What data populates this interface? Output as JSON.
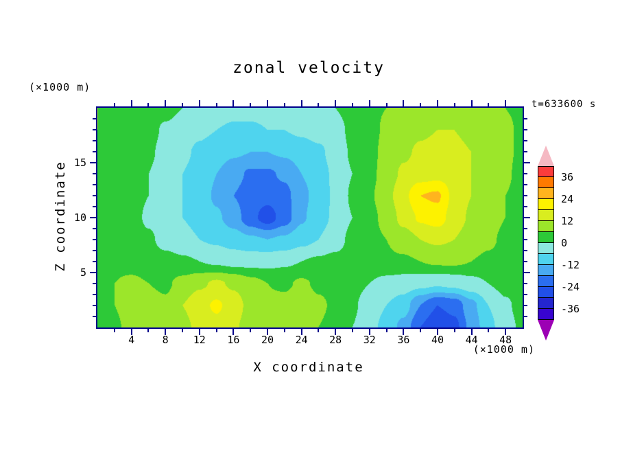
{
  "title": "zonal velocity",
  "annotations": {
    "time_label": "t=633600 s",
    "y_unit_label": "(×1000 m)",
    "x_unit_label": "(×1000 m)"
  },
  "frame_color": "#00008b",
  "axes": {
    "x": {
      "label": "X coordinate",
      "min": 0,
      "max": 50,
      "major_ticks": [
        4,
        8,
        12,
        16,
        20,
        24,
        28,
        32,
        36,
        40,
        44,
        48
      ],
      "minor_step": 2
    },
    "z": {
      "label": "Z coordinate",
      "min": 0,
      "max": 20,
      "major_ticks": [
        5,
        10,
        15
      ],
      "minor_step": 1
    }
  },
  "colorbar": {
    "vmin": -42,
    "vmax": 42,
    "interval": 6,
    "labels": [
      36,
      24,
      12,
      0,
      -12,
      -24,
      -36
    ],
    "band_colors": [
      "#3804d0",
      "#2426cf",
      "#2150e8",
      "#2b6ef0",
      "#49aaf2",
      "#4fd4ee",
      "#8ce8e0",
      "#2dc938",
      "#9ce62a",
      "#d9ed1f",
      "#fdf200",
      "#ffb41e",
      "#ff7a00",
      "#fb3c3c"
    ],
    "over_color": "#f5b9c3",
    "under_color": "#9c00b4"
  },
  "chart_data": {
    "type": "heatmap",
    "title": "zonal velocity",
    "xlabel": "X coordinate (×1000 m)",
    "ylabel": "Z coordinate (×1000 m)",
    "time_annotation": "t=633600 s",
    "contour_interval": 6,
    "levels_range": [
      -42,
      42
    ],
    "x": [
      0,
      2,
      4,
      6,
      8,
      10,
      12,
      14,
      16,
      18,
      20,
      22,
      24,
      26,
      28,
      30,
      32,
      34,
      36,
      38,
      40,
      42,
      44,
      46,
      48,
      50
    ],
    "z": [
      20,
      18,
      16,
      14,
      12,
      10,
      8,
      6,
      4,
      2,
      0
    ],
    "values": [
      [
        6,
        5,
        4,
        3,
        2,
        0,
        -2,
        -3,
        -4,
        -4,
        -4,
        -3,
        -2,
        -1,
        0,
        3,
        5,
        6,
        7,
        8,
        9,
        9,
        8,
        7,
        6,
        5
      ],
      [
        6,
        4,
        3,
        2,
        -1,
        -3,
        -5,
        -6,
        -7,
        -7,
        -6,
        -6,
        -5,
        -4,
        -3,
        2,
        4,
        7,
        9,
        11,
        12,
        12,
        11,
        9,
        7,
        5
      ],
      [
        5,
        4,
        3,
        1,
        -2,
        -5,
        -7,
        -9,
        -11,
        -12,
        -12,
        -11,
        -9,
        -7,
        -4,
        1,
        4,
        8,
        11,
        13,
        14,
        13,
        12,
        10,
        7,
        5
      ],
      [
        5,
        4,
        3,
        0,
        -3,
        -6,
        -8,
        -12,
        -16,
        -19,
        -19,
        -17,
        -12,
        -8,
        -5,
        0,
        4,
        9,
        13,
        15,
        16,
        15,
        12,
        9,
        7,
        4
      ],
      [
        5,
        4,
        2,
        0,
        -3,
        -6,
        -9,
        -13,
        -18,
        -21,
        -22,
        -20,
        -14,
        -9,
        -5,
        1,
        5,
        10,
        16,
        24,
        25,
        16,
        12,
        9,
        6,
        4
      ],
      [
        5,
        4,
        2,
        -1,
        -4,
        -6,
        -8,
        -11,
        -15,
        -22,
        -27,
        -21,
        -13,
        -8,
        -5,
        0,
        4,
        8,
        14,
        19,
        21,
        15,
        11,
        8,
        6,
        4
      ],
      [
        5,
        4,
        3,
        1,
        -2,
        -4,
        -6,
        -7,
        -9,
        -11,
        -12,
        -11,
        -8,
        -6,
        -3,
        2,
        4,
        6,
        9,
        12,
        13,
        12,
        9,
        7,
        5,
        4
      ],
      [
        5,
        5,
        4,
        3,
        2,
        1,
        0,
        -1,
        -2,
        -2,
        -2,
        -1,
        0,
        1,
        2,
        3,
        4,
        5,
        5,
        6,
        7,
        7,
        6,
        5,
        4,
        4
      ],
      [
        5,
        6,
        7,
        6,
        5,
        8,
        11,
        13,
        11,
        8,
        6,
        5,
        7,
        5,
        4,
        2,
        0,
        -2,
        -3,
        -4,
        -5,
        -4,
        -2,
        0,
        2,
        3
      ],
      [
        4,
        6,
        9,
        8,
        7,
        12,
        16,
        19,
        15,
        10,
        7,
        8,
        10,
        7,
        5,
        1,
        -3,
        -6,
        -9,
        -18,
        -24,
        -22,
        -14,
        -6,
        -1,
        2
      ],
      [
        3,
        5,
        8,
        7,
        6,
        10,
        14,
        16,
        13,
        9,
        6,
        7,
        9,
        6,
        4,
        0,
        -4,
        -8,
        -14,
        -24,
        -30,
        -26,
        -16,
        -8,
        -2,
        1
      ]
    ]
  }
}
